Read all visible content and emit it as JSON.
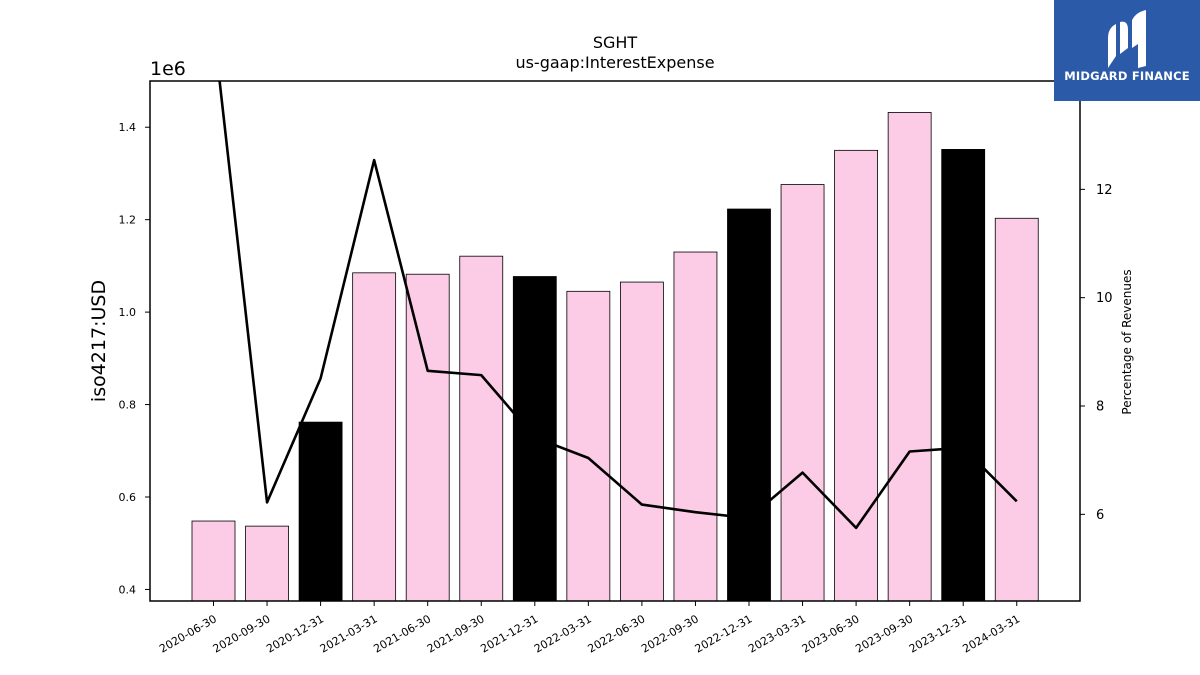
{
  "chart_data": {
    "type": "bar",
    "title": "SGHT",
    "subtitle": "us-gaap:InterestExpense",
    "ylabel": "iso4217:USD",
    "y_offset_label": "1e6",
    "y2label": "Percentage of Revenues",
    "ylim": [
      0.375,
      1.5
    ],
    "y2lim": [
      4.4,
      14.0
    ],
    "yticks": [
      "0.4",
      "0.6",
      "0.8",
      "1.0",
      "1.2",
      "1.4"
    ],
    "y2ticks": [
      "6",
      "8",
      "10",
      "12"
    ],
    "categories": [
      "2020-06-30",
      "2020-09-30",
      "2020-12-31",
      "2021-03-31",
      "2021-06-30",
      "2021-09-30",
      "2021-12-31",
      "2022-03-31",
      "2022-06-30",
      "2022-09-30",
      "2022-12-31",
      "2023-03-31",
      "2023-06-30",
      "2023-09-30",
      "2023-12-31",
      "2024-03-31"
    ],
    "series": [
      {
        "type": "bar",
        "values": [
          0.548,
          0.537,
          0.762,
          1.085,
          1.082,
          1.121,
          1.077,
          1.045,
          1.065,
          1.13,
          1.223,
          1.276,
          1.35,
          1.432,
          1.352,
          1.203
        ],
        "colors": [
          "#fccbe6",
          "#fccbe6",
          "#000000",
          "#fccbe6",
          "#fccbe6",
          "#fccbe6",
          "#000000",
          "#fccbe6",
          "#fccbe6",
          "#fccbe6",
          "#000000",
          "#fccbe6",
          "#fccbe6",
          "#fccbe6",
          "#000000",
          "#fccbe6"
        ]
      },
      {
        "type": "line",
        "axis": "right",
        "values": [
          15.0,
          6.22,
          8.51,
          12.54,
          8.65,
          8.57,
          7.42,
          7.04,
          6.18,
          6.04,
          5.93,
          6.77,
          5.75,
          7.16,
          7.23,
          6.24
        ],
        "color": "#000000"
      }
    ],
    "grid": false
  },
  "logo": {
    "text": "MIDGARD FINANCE",
    "color": "#2b5aa8"
  }
}
